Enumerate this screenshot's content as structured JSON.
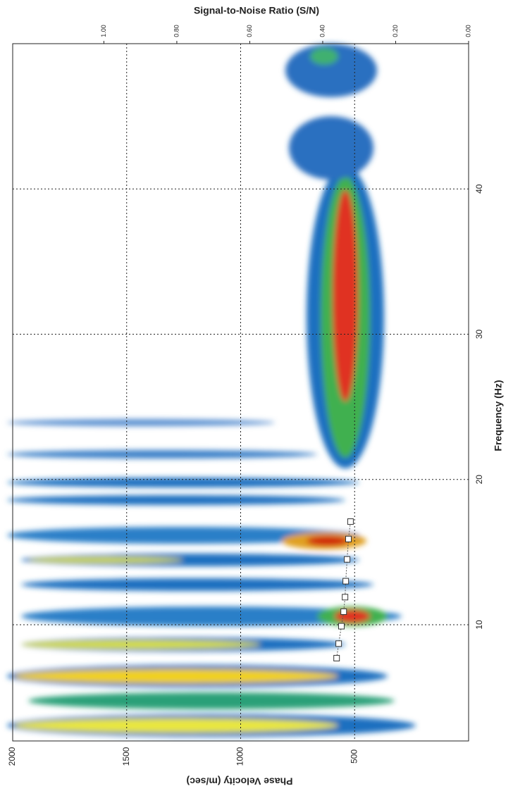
{
  "chart_data": {
    "type": "scatter",
    "title": "Signal-to-Noise Ratio (S/N)",
    "x_label": "Frequency (Hz)",
    "y_label": "Phase Velocity (m/sec)",
    "x": [
      7.7,
      8.7,
      9.9,
      10.9,
      11.9,
      13.0,
      14.5,
      15.9,
      17.1
    ],
    "series": [
      {
        "color": "#ffffff",
        "values": [
          579,
          570,
          558,
          548,
          542,
          539,
          533,
          527,
          518
        ]
      }
    ],
    "xlim": [
      2,
      50
    ],
    "xticks": [
      10,
      20,
      30,
      40
    ],
    "ylim": [
      0,
      2000
    ],
    "yticks": [
      500,
      1000,
      1500,
      2000
    ],
    "y2lim": [
      0,
      1.25
    ],
    "y2ticks": [
      {
        "value": 1,
        "label": "1.00"
      },
      {
        "value": 0.8,
        "label": "0.80"
      },
      {
        "value": 0.6,
        "label": "0.60"
      },
      {
        "value": 0.4,
        "label": "0.40"
      },
      {
        "value": 0.2,
        "label": "0.20"
      },
      {
        "value": 0,
        "label": "0.00"
      }
    ],
    "grid": true
  }
}
